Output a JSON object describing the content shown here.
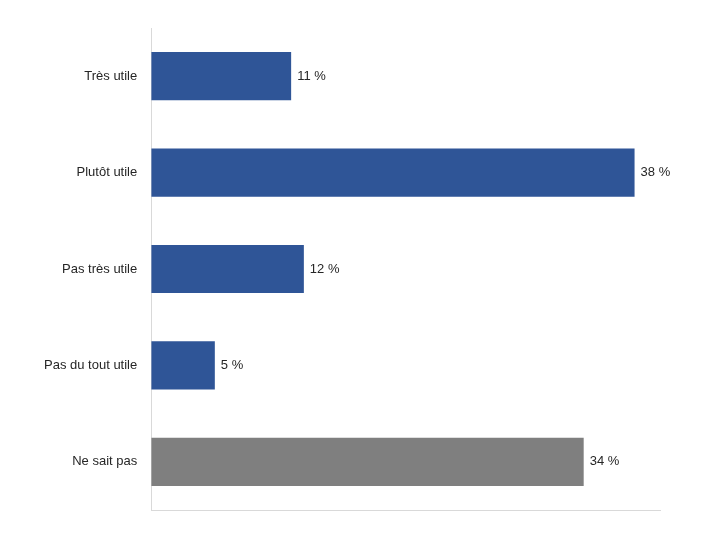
{
  "chart_data": {
    "type": "bar",
    "orientation": "horizontal",
    "categories": [
      "Très utile",
      "Plutôt utile",
      "Pas très utile",
      "Pas du tout utile",
      "Ne sait pas"
    ],
    "values": [
      11,
      38,
      12,
      5,
      34
    ],
    "value_labels": [
      "11 %",
      "38 %",
      "12 %",
      "5 %",
      "34 %"
    ],
    "colors": [
      "#2f5597",
      "#2f5597",
      "#2f5597",
      "#2f5597",
      "#7f7f7f"
    ],
    "xlim": [
      0,
      40
    ],
    "grid": false,
    "data_labels": true,
    "tick_labels": "y"
  }
}
